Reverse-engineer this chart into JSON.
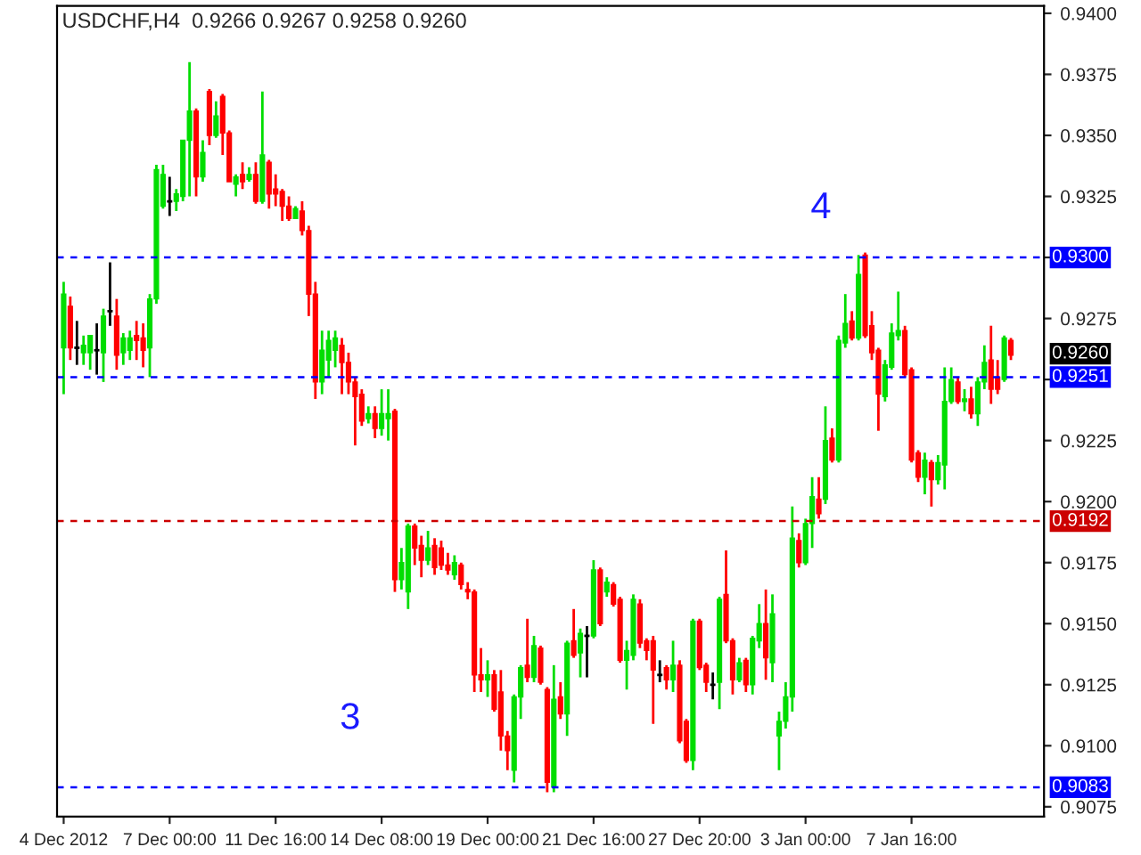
{
  "chart_data": {
    "type": "candlestick",
    "title": "USDCHF,H4  0.9266 0.9267 0.9258 0.9260",
    "categories": [
      "4 Dec 2012",
      null,
      null,
      null,
      null,
      null,
      null,
      null,
      null,
      null,
      null,
      null,
      null,
      null,
      null,
      null,
      "7 Dec 00:00",
      null,
      null,
      null,
      null,
      null,
      null,
      null,
      null,
      null,
      null,
      null,
      null,
      null,
      null,
      null,
      "11 Dec 16:00",
      null,
      null,
      null,
      null,
      null,
      null,
      null,
      null,
      null,
      null,
      null,
      null,
      null,
      null,
      null,
      "14 Dec 08:00",
      null,
      null,
      null,
      null,
      null,
      null,
      null,
      null,
      null,
      null,
      null,
      null,
      null,
      null,
      null,
      "19 Dec 00:00",
      null,
      null,
      null,
      null,
      null,
      null,
      null,
      null,
      null,
      null,
      null,
      null,
      null,
      null,
      null,
      "21 Dec 16:00",
      null,
      null,
      null,
      null,
      null,
      null,
      null,
      null,
      null,
      null,
      null,
      null,
      null,
      null,
      null,
      "27 Dec 20:00",
      null,
      null,
      null,
      null,
      null,
      null,
      null,
      null,
      null,
      null,
      null,
      null,
      null,
      null,
      null,
      "3 Jan 00:00",
      null,
      null,
      null,
      null,
      null,
      null,
      null,
      null,
      null,
      null,
      null,
      null,
      null,
      null,
      null,
      "7 Jan 16:00",
      null,
      null,
      null,
      null,
      null,
      null,
      null,
      null,
      null,
      null,
      null,
      null,
      null,
      null,
      null
    ],
    "ohlc": [
      [
        0.9263,
        0.929,
        0.9244,
        0.9285
      ],
      [
        0.928,
        0.9284,
        0.9258,
        0.9263
      ],
      [
        0.9263,
        0.9274,
        0.9256,
        0.9263
      ],
      [
        0.9261,
        0.9268,
        0.9256,
        0.9264
      ],
      [
        0.9261,
        0.9268,
        0.9254,
        0.9268
      ],
      [
        0.9262,
        0.9273,
        0.9252,
        0.9262
      ],
      [
        0.9261,
        0.9279,
        0.9249,
        0.9276
      ],
      [
        0.9278,
        0.9298,
        0.9272,
        0.9278
      ],
      [
        0.9276,
        0.9283,
        0.9254,
        0.926
      ],
      [
        0.9261,
        0.9269,
        0.9256,
        0.9267
      ],
      [
        0.9262,
        0.927,
        0.9258,
        0.9267
      ],
      [
        0.9268,
        0.9274,
        0.9258,
        0.9266
      ],
      [
        0.9267,
        0.9273,
        0.9255,
        0.9262
      ],
      [
        0.9263,
        0.9285,
        0.9251,
        0.9283
      ],
      [
        0.9283,
        0.9338,
        0.9281,
        0.9336
      ],
      [
        0.9321,
        0.9338,
        0.932,
        0.9334
      ],
      [
        0.9323,
        0.9333,
        0.9317,
        0.9323
      ],
      [
        0.9323,
        0.9328,
        0.9319,
        0.9326
      ],
      [
        0.9325,
        0.9348,
        0.9323,
        0.9348
      ],
      [
        0.9348,
        0.938,
        0.9325,
        0.936
      ],
      [
        0.936,
        0.9361,
        0.9325,
        0.9333
      ],
      [
        0.9333,
        0.9348,
        0.9331,
        0.9343
      ],
      [
        0.9368,
        0.9369,
        0.9346,
        0.935
      ],
      [
        0.935,
        0.9364,
        0.9349,
        0.9358
      ],
      [
        0.9366,
        0.9367,
        0.9342,
        0.9351
      ],
      [
        0.9351,
        0.9352,
        0.9331,
        0.9331
      ],
      [
        0.933,
        0.9334,
        0.9325,
        0.9333
      ],
      [
        0.9334,
        0.9339,
        0.9328,
        0.9331
      ],
      [
        0.9332,
        0.9337,
        0.9331,
        0.9334
      ],
      [
        0.9334,
        0.9339,
        0.9322,
        0.9323
      ],
      [
        0.9323,
        0.9368,
        0.9322,
        0.9342
      ],
      [
        0.9339,
        0.934,
        0.932,
        0.9326
      ],
      [
        0.9328,
        0.9334,
        0.9321,
        0.9326
      ],
      [
        0.9327,
        0.9328,
        0.9315,
        0.9321
      ],
      [
        0.9321,
        0.9325,
        0.9315,
        0.9316
      ],
      [
        0.9316,
        0.9321,
        0.9316,
        0.932
      ],
      [
        0.9319,
        0.9323,
        0.9309,
        0.9311
      ],
      [
        0.9311,
        0.9313,
        0.9276,
        0.9285
      ],
      [
        0.9285,
        0.929,
        0.9242,
        0.9249
      ],
      [
        0.9249,
        0.927,
        0.9244,
        0.9262
      ],
      [
        0.9258,
        0.927,
        0.9251,
        0.9266
      ],
      [
        0.9262,
        0.927,
        0.9255,
        0.9267
      ],
      [
        0.9264,
        0.9267,
        0.9244,
        0.9257
      ],
      [
        0.9257,
        0.9261,
        0.9244,
        0.9249
      ],
      [
        0.9249,
        0.9251,
        0.9223,
        0.9243
      ],
      [
        0.9244,
        0.9246,
        0.9231,
        0.9233
      ],
      [
        0.9234,
        0.9239,
        0.9232,
        0.9236
      ],
      [
        0.9236,
        0.9239,
        0.9226,
        0.923
      ],
      [
        0.923,
        0.9246,
        0.9227,
        0.9236
      ],
      [
        0.9234,
        0.9246,
        0.9225,
        0.9236
      ],
      [
        0.9237,
        0.9238,
        0.9163,
        0.9168
      ],
      [
        0.9168,
        0.9181,
        0.9164,
        0.9175
      ],
      [
        0.9163,
        0.9191,
        0.9156,
        0.919
      ],
      [
        0.919,
        0.9191,
        0.9174,
        0.9181
      ],
      [
        0.9182,
        0.9186,
        0.9169,
        0.9176
      ],
      [
        0.9176,
        0.9188,
        0.9174,
        0.9181
      ],
      [
        0.9182,
        0.9185,
        0.917,
        0.9173
      ],
      [
        0.9181,
        0.9184,
        0.9172,
        0.9174
      ],
      [
        0.9174,
        0.9179,
        0.917,
        0.9172
      ],
      [
        0.917,
        0.9178,
        0.9168,
        0.9175
      ],
      [
        0.9174,
        0.9175,
        0.9164,
        0.9166
      ],
      [
        0.9164,
        0.9167,
        0.916,
        0.9163
      ],
      [
        0.9163,
        0.9164,
        0.9122,
        0.9129
      ],
      [
        0.9129,
        0.914,
        0.9122,
        0.9127
      ],
      [
        0.9127,
        0.9135,
        0.912,
        0.9129
      ],
      [
        0.9129,
        0.9131,
        0.9114,
        0.9115
      ],
      [
        0.9122,
        0.9131,
        0.9098,
        0.9104
      ],
      [
        0.9104,
        0.9106,
        0.909,
        0.9098
      ],
      [
        0.909,
        0.9121,
        0.9085,
        0.912
      ],
      [
        0.912,
        0.9133,
        0.9111,
        0.9132
      ],
      [
        0.9133,
        0.9152,
        0.9126,
        0.9128
      ],
      [
        0.9128,
        0.9145,
        0.9126,
        0.9141
      ],
      [
        0.914,
        0.9141,
        0.9125,
        0.9126
      ],
      [
        0.9123,
        0.9124,
        0.9081,
        0.9085
      ],
      [
        0.9083,
        0.9133,
        0.9081,
        0.9119
      ],
      [
        0.912,
        0.9126,
        0.9111,
        0.9113
      ],
      [
        0.9113,
        0.9143,
        0.9104,
        0.9142
      ],
      [
        0.9143,
        0.9156,
        0.9136,
        0.9137
      ],
      [
        0.9138,
        0.9148,
        0.9128,
        0.9146
      ],
      [
        0.9145,
        0.9149,
        0.9128,
        0.9145
      ],
      [
        0.9145,
        0.9176,
        0.9144,
        0.9172
      ],
      [
        0.9172,
        0.9173,
        0.9149,
        0.915
      ],
      [
        0.9163,
        0.9169,
        0.9161,
        0.9167
      ],
      [
        0.9166,
        0.9167,
        0.9157,
        0.9158
      ],
      [
        0.916,
        0.9161,
        0.9134,
        0.9135
      ],
      [
        0.9135,
        0.9143,
        0.9123,
        0.9139
      ],
      [
        0.9137,
        0.9162,
        0.9135,
        0.916
      ],
      [
        0.9158,
        0.916,
        0.914,
        0.9142
      ],
      [
        0.9143,
        0.9144,
        0.9135,
        0.9139
      ],
      [
        0.9143,
        0.9145,
        0.9109,
        0.9131
      ],
      [
        0.9129,
        0.9135,
        0.9126,
        0.9129
      ],
      [
        0.9132,
        0.9133,
        0.9123,
        0.9127
      ],
      [
        0.9127,
        0.9143,
        0.9122,
        0.9133
      ],
      [
        0.9133,
        0.9135,
        0.9101,
        0.9102
      ],
      [
        0.911,
        0.9111,
        0.9093,
        0.9094
      ],
      [
        0.9094,
        0.9152,
        0.909,
        0.9151
      ],
      [
        0.9151,
        0.9152,
        0.9131,
        0.9132
      ],
      [
        0.9133,
        0.9134,
        0.9122,
        0.9126
      ],
      [
        0.9125,
        0.913,
        0.9119,
        0.9125
      ],
      [
        0.9126,
        0.9161,
        0.9115,
        0.916
      ],
      [
        0.9162,
        0.918,
        0.9142,
        0.9143
      ],
      [
        0.9143,
        0.9144,
        0.9121,
        0.9127
      ],
      [
        0.9127,
        0.9136,
        0.9126,
        0.9134
      ],
      [
        0.9135,
        0.9136,
        0.9122,
        0.9125
      ],
      [
        0.9125,
        0.9145,
        0.9121,
        0.9144
      ],
      [
        0.9143,
        0.9158,
        0.914,
        0.915
      ],
      [
        0.915,
        0.9164,
        0.9127,
        0.9136
      ],
      [
        0.9134,
        0.9162,
        0.9126,
        0.9154
      ],
      [
        0.9104,
        0.9114,
        0.909,
        0.911
      ],
      [
        0.911,
        0.9126,
        0.9107,
        0.912
      ],
      [
        0.912,
        0.9198,
        0.9114,
        0.9185
      ],
      [
        0.9184,
        0.9187,
        0.9173,
        0.9175
      ],
      [
        0.9175,
        0.9193,
        0.9174,
        0.9191
      ],
      [
        0.9191,
        0.921,
        0.9181,
        0.9202
      ],
      [
        0.9201,
        0.921,
        0.9193,
        0.9195
      ],
      [
        0.9201,
        0.9239,
        0.9199,
        0.9225
      ],
      [
        0.9226,
        0.923,
        0.9216,
        0.9217
      ],
      [
        0.9217,
        0.9268,
        0.9216,
        0.9266
      ],
      [
        0.9265,
        0.9285,
        0.9263,
        0.9273
      ],
      [
        0.9274,
        0.9278,
        0.9266,
        0.9267
      ],
      [
        0.9267,
        0.9301,
        0.9266,
        0.9293
      ],
      [
        0.9301,
        0.9302,
        0.9267,
        0.9268
      ],
      [
        0.9272,
        0.9278,
        0.9258,
        0.9261
      ],
      [
        0.9262,
        0.9263,
        0.9229,
        0.9244
      ],
      [
        0.9243,
        0.9258,
        0.9241,
        0.9256
      ],
      [
        0.9255,
        0.9273,
        0.9254,
        0.9269
      ],
      [
        0.9268,
        0.9286,
        0.9266,
        0.927
      ],
      [
        0.927,
        0.9272,
        0.9251,
        0.9252
      ],
      [
        0.9254,
        0.9255,
        0.9216,
        0.9217
      ],
      [
        0.922,
        0.9221,
        0.9208,
        0.921
      ],
      [
        0.921,
        0.922,
        0.9203,
        0.9217
      ],
      [
        0.9216,
        0.9217,
        0.9198,
        0.9209
      ],
      [
        0.9209,
        0.9219,
        0.9207,
        0.9216
      ],
      [
        0.9215,
        0.9255,
        0.9205,
        0.9241
      ],
      [
        0.9241,
        0.9255,
        0.924,
        0.925
      ],
      [
        0.9249,
        0.9251,
        0.924,
        0.9241
      ],
      [
        0.9241,
        0.9246,
        0.9237,
        0.9242
      ],
      [
        0.9242,
        0.9247,
        0.9234,
        0.9236
      ],
      [
        0.9236,
        0.9251,
        0.9231,
        0.9249
      ],
      [
        0.9249,
        0.9264,
        0.9246,
        0.9257
      ],
      [
        0.9258,
        0.9272,
        0.924,
        0.9246
      ],
      [
        0.9251,
        0.9258,
        0.9244,
        0.9246
      ],
      [
        0.925,
        0.9268,
        0.9249,
        0.9267
      ],
      [
        0.9266,
        0.9267,
        0.9258,
        0.926
      ]
    ],
    "colors": [
      "#00dd00",
      "#ff0000",
      "#000000",
      "#00dd00",
      "#00dd00",
      "#000000",
      "#00dd00",
      "#000000",
      "#ff0000",
      "#00dd00",
      "#00dd00",
      "#ff0000",
      "#ff0000",
      "#00dd00",
      "#00dd00",
      "#00dd00",
      "#000000",
      "#00dd00",
      "#00dd00",
      "#00dd00",
      "#ff0000",
      "#00dd00",
      "#ff0000",
      "#00dd00",
      "#ff0000",
      "#ff0000",
      "#00dd00",
      "#ff0000",
      "#00dd00",
      "#ff0000",
      "#00dd00",
      "#ff0000",
      "#ff0000",
      "#ff0000",
      "#ff0000",
      "#00dd00",
      "#ff0000",
      "#ff0000",
      "#ff0000",
      "#00dd00",
      "#00dd00",
      "#00dd00",
      "#ff0000",
      "#ff0000",
      "#ff0000",
      "#ff0000",
      "#00dd00",
      "#ff0000",
      "#00dd00",
      "#00dd00",
      "#ff0000",
      "#00dd00",
      "#00dd00",
      "#ff0000",
      "#ff0000",
      "#00dd00",
      "#ff0000",
      "#ff0000",
      "#ff0000",
      "#00dd00",
      "#ff0000",
      "#ff0000",
      "#ff0000",
      "#ff0000",
      "#00dd00",
      "#ff0000",
      "#ff0000",
      "#ff0000",
      "#00dd00",
      "#00dd00",
      "#ff0000",
      "#00dd00",
      "#ff0000",
      "#ff0000",
      "#00dd00",
      "#ff0000",
      "#00dd00",
      "#ff0000",
      "#00dd00",
      "#000000",
      "#00dd00",
      "#ff0000",
      "#00dd00",
      "#ff0000",
      "#ff0000",
      "#00dd00",
      "#00dd00",
      "#ff0000",
      "#ff0000",
      "#ff0000",
      "#000000",
      "#ff0000",
      "#00dd00",
      "#ff0000",
      "#ff0000",
      "#00dd00",
      "#ff0000",
      "#ff0000",
      "#000000",
      "#00dd00",
      "#ff0000",
      "#ff0000",
      "#00dd00",
      "#ff0000",
      "#00dd00",
      "#00dd00",
      "#ff0000",
      "#00dd00",
      "#00dd00",
      "#00dd00",
      "#00dd00",
      "#ff0000",
      "#00dd00",
      "#00dd00",
      "#ff0000",
      "#00dd00",
      "#ff0000",
      "#00dd00",
      "#00dd00",
      "#ff0000",
      "#00dd00",
      "#ff0000",
      "#ff0000",
      "#ff0000",
      "#00dd00",
      "#00dd00",
      "#00dd00",
      "#ff0000",
      "#ff0000",
      "#ff0000",
      "#00dd00",
      "#ff0000",
      "#00dd00",
      "#00dd00",
      "#00dd00",
      "#ff0000",
      "#00dd00",
      "#ff0000",
      "#00dd00",
      "#00dd00",
      "#ff0000",
      "#ff0000",
      "#00dd00",
      "#ff0000"
    ],
    "ylim": [
      0.9071,
      0.9403
    ],
    "yticks": [
      {
        "value": 0.9075,
        "label": "0.9075"
      },
      {
        "value": 0.91,
        "label": "0.9100"
      },
      {
        "value": 0.9125,
        "label": "0.9125"
      },
      {
        "value": 0.915,
        "label": "0.9150"
      },
      {
        "value": 0.9175,
        "label": "0.9175"
      },
      {
        "value": 0.92,
        "label": "0.9200"
      },
      {
        "value": 0.9225,
        "label": "0.9225"
      },
      {
        "value": 0.925,
        "label": null
      },
      {
        "value": 0.9275,
        "label": "0.9275"
      },
      {
        "value": 0.93,
        "label": null
      },
      {
        "value": 0.9325,
        "label": "0.9325"
      },
      {
        "value": 0.935,
        "label": "0.9350"
      },
      {
        "value": 0.9375,
        "label": "0.9375"
      },
      {
        "value": 0.94,
        "label": "0.9400"
      }
    ],
    "ref_lines": [
      {
        "axis": "y",
        "value": 0.93,
        "label": "0.9300",
        "color": "#0000ff",
        "line_style": "dashed"
      },
      {
        "axis": "y",
        "value": 0.9251,
        "label": "0.9251",
        "color": "#0000ff",
        "line_style": "dashed"
      },
      {
        "axis": "y",
        "value": 0.9192,
        "label": "0.9192",
        "color": "#cc0000",
        "line_style": "dashed"
      },
      {
        "axis": "y",
        "value": 0.9083,
        "label": "0.9083",
        "color": "#0000ff",
        "line_style": "dashed"
      }
    ],
    "annotations": [
      "3",
      "4",
      "0.9260"
    ]
  }
}
